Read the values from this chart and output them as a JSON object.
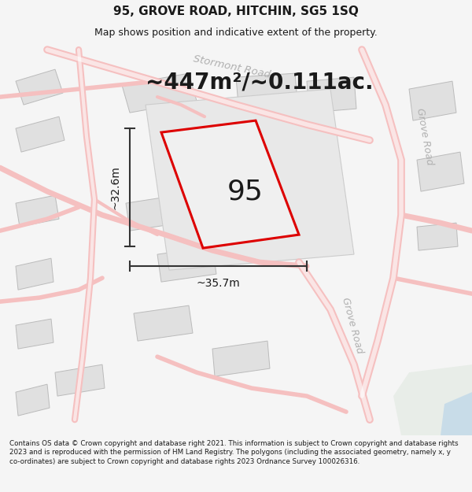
{
  "title": "95, GROVE ROAD, HITCHIN, SG5 1SQ",
  "subtitle": "Map shows position and indicative extent of the property.",
  "area_text": "~447m²/~0.111ac.",
  "label_95": "95",
  "dim_width": "~35.7m",
  "dim_height": "~32.6m",
  "footer": "Contains OS data © Crown copyright and database right 2021. This information is subject to Crown copyright and database rights 2023 and is reproduced with the permission of HM Land Registry. The polygons (including the associated geometry, namely x, y co-ordinates) are subject to Crown copyright and database rights 2023 Ordnance Survey 100026316.",
  "bg_color": "#f5f5f5",
  "map_bg": "#ffffff",
  "building_fill": "#e0e0e0",
  "building_edge": "#bbbbbb",
  "road_color": "#f5c0c0",
  "road_color2": "#e8a8a8",
  "property_fill": "#efefef",
  "property_outline": "#dd0000",
  "text_color": "#1a1a1a",
  "road_label_color": "#b0b0b0",
  "green_fill": "#e8ede8",
  "blue_fill": "#c8dce8",
  "title_fontsize": 11,
  "subtitle_fontsize": 9,
  "area_fontsize": 20,
  "label_95_fontsize": 26,
  "dim_fontsize": 10,
  "footer_fontsize": 6.3
}
